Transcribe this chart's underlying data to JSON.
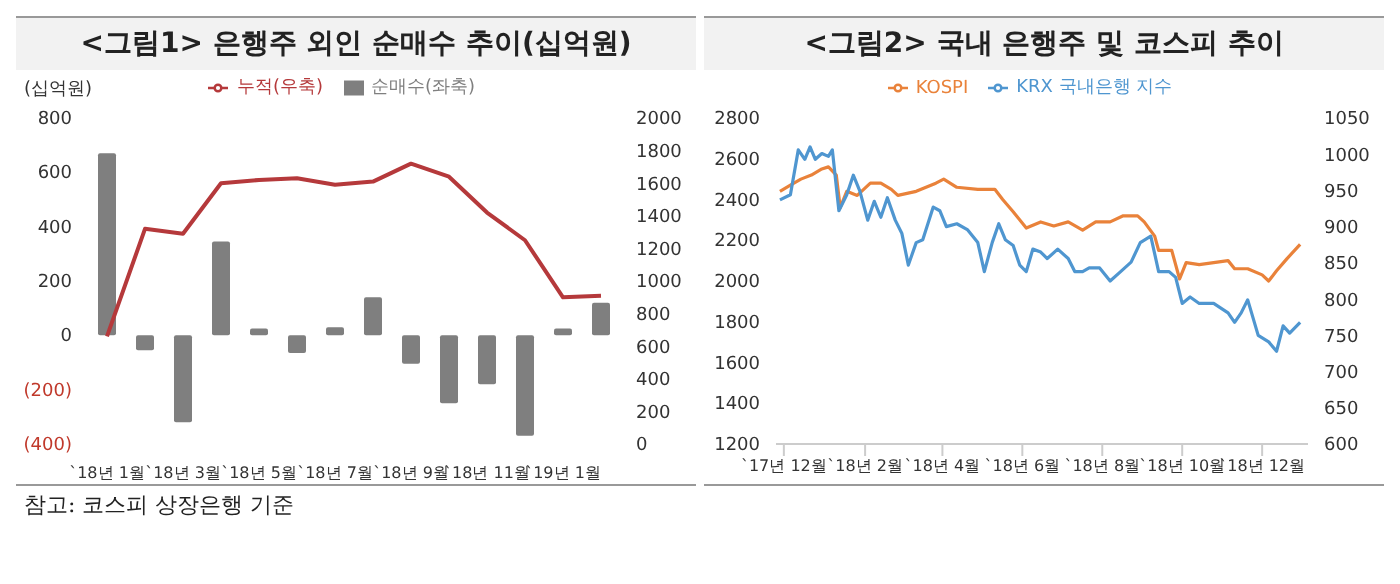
{
  "chart_data": [
    {
      "type": "bar",
      "title": "<그림1> 은행주 외인 순매수 추이(십억원)",
      "ylabel": "(십억원)",
      "annotations": [
        "참고: 코스피 상장은행 기준"
      ],
      "legend": "top",
      "grid": false,
      "categories": [
        "`18년 1월",
        null,
        "`18년 3월",
        null,
        "`18년 5월",
        null,
        "`18년 7월",
        null,
        "`18년 9월",
        null,
        "`18년 11월",
        null,
        "`19년 1월",
        null
      ],
      "series": [
        {
          "name": "순매수(좌축)",
          "color": "#7f7f7f",
          "values": [
            670,
            -55,
            -320,
            345,
            25,
            -65,
            30,
            140,
            -105,
            -250,
            -180,
            -370,
            25,
            120
          ]
        },
        {
          "name": "누적(우축)",
          "type": "line",
          "axis": "y2",
          "color": "#b5393b",
          "values": [
            660,
            1320,
            1290,
            1600,
            1620,
            1630,
            1590,
            1610,
            1720,
            1640,
            1420,
            1250,
            900,
            910
          ]
        }
      ],
      "ylim": [
        -400,
        800
      ],
      "yticks": [
        {
          "value": -400,
          "label": "(400)"
        },
        {
          "value": -200,
          "label": "(200)"
        },
        0,
        200,
        400,
        600,
        800
      ],
      "y2lim": [
        0,
        2000
      ],
      "y2ticks": [
        0,
        200,
        400,
        600,
        800,
        1000,
        1200,
        1400,
        1600,
        1800,
        2000
      ]
    },
    {
      "type": "line",
      "title": "<그림2> 국내 은행주 및 코스피 추이",
      "legend": "top",
      "grid": false,
      "marker": "none",
      "xlim": [
        "2017-11-25",
        "2019-01-05"
      ],
      "xticks": [
        {
          "value": "2017-12-01",
          "label": "`17년 12월"
        },
        {
          "value": "2018-02-01",
          "label": "`18년 2월"
        },
        {
          "value": "2018-04-01",
          "label": "`18년 4월"
        },
        {
          "value": "2018-06-01",
          "label": "`18년 6월"
        },
        {
          "value": "2018-08-01",
          "label": "`18년 8월"
        },
        {
          "value": "2018-10-01",
          "label": "`18년 10월"
        },
        {
          "value": "2018-12-01",
          "label": "`18년 12월"
        }
      ],
      "ylim": [
        1200,
        2800
      ],
      "yticks": [
        1200,
        1400,
        1600,
        1800,
        2000,
        2200,
        2400,
        2600,
        2800
      ],
      "y2lim": [
        600,
        1050
      ],
      "y2ticks": [
        600,
        650,
        700,
        750,
        800,
        850,
        900,
        950,
        1000,
        1050
      ],
      "series": [
        {
          "name": "KOSPI",
          "color": "#e9823a",
          "x": [
            "2017-11-28",
            "2017-12-06",
            "2017-12-14",
            "2017-12-22",
            "2017-12-30",
            "2018-01-04",
            "2018-01-10",
            "2018-01-13",
            "2018-01-18",
            "2018-01-26",
            "2018-02-05",
            "2018-02-13",
            "2018-02-21",
            "2018-02-26",
            "2018-03-12",
            "2018-03-27",
            "2018-04-02",
            "2018-04-12",
            "2018-04-28",
            "2018-05-11",
            "2018-05-17",
            "2018-05-25",
            "2018-06-04",
            "2018-06-15",
            "2018-06-25",
            "2018-07-06",
            "2018-07-17",
            "2018-07-27",
            "2018-08-07",
            "2018-08-17",
            "2018-08-28",
            "2018-09-02",
            "2018-09-10",
            "2018-09-13",
            "2018-09-23",
            "2018-09-29",
            "2018-10-04",
            "2018-10-14",
            "2018-10-25",
            "2018-11-05",
            "2018-11-10",
            "2018-11-20",
            "2018-12-01",
            "2018-12-06",
            "2018-12-12",
            "2018-12-20",
            "2018-12-30"
          ],
          "values": [
            2440,
            2470,
            2500,
            2520,
            2550,
            2560,
            2520,
            2360,
            2440,
            2420,
            2480,
            2480,
            2450,
            2420,
            2440,
            2480,
            2500,
            2460,
            2450,
            2450,
            2400,
            2340,
            2260,
            2290,
            2270,
            2290,
            2250,
            2290,
            2290,
            2320,
            2320,
            2290,
            2220,
            2150,
            2150,
            2010,
            2090,
            2080,
            2090,
            2100,
            2060,
            2060,
            2030,
            2000,
            2050,
            2110,
            2180
          ]
        },
        {
          "name": "KRX 국내은행 지수",
          "color": "#4f96d0",
          "axis": "y2",
          "x": [
            "2017-11-28",
            "2017-12-06",
            "2017-12-12",
            "2017-12-17",
            "2017-12-21",
            "2017-12-25",
            "2017-12-30",
            "2018-01-04",
            "2018-01-07",
            "2018-01-12",
            "2018-01-18",
            "2018-01-23",
            "2018-01-28",
            "2018-02-03",
            "2018-02-08",
            "2018-02-13",
            "2018-02-18",
            "2018-02-24",
            "2018-03-01",
            "2018-03-06",
            "2018-03-12",
            "2018-03-17",
            "2018-03-25",
            "2018-03-30",
            "2018-04-04",
            "2018-04-12",
            "2018-04-20",
            "2018-04-28",
            "2018-05-03",
            "2018-05-09",
            "2018-05-14",
            "2018-05-19",
            "2018-05-25",
            "2018-05-30",
            "2018-06-04",
            "2018-06-09",
            "2018-06-15",
            "2018-06-20",
            "2018-06-28",
            "2018-07-06",
            "2018-07-11",
            "2018-07-17",
            "2018-07-22",
            "2018-07-30",
            "2018-08-07",
            "2018-08-15",
            "2018-08-23",
            "2018-08-30",
            "2018-09-07",
            "2018-09-13",
            "2018-09-21",
            "2018-09-26",
            "2018-10-01",
            "2018-10-07",
            "2018-10-14",
            "2018-10-25",
            "2018-11-05",
            "2018-11-10",
            "2018-11-15",
            "2018-11-20",
            "2018-11-28",
            "2018-12-06",
            "2018-12-12",
            "2018-12-17",
            "2018-12-22",
            "2018-12-30"
          ],
          "values": [
            937,
            944,
            1006,
            993,
            1010,
            993,
            1001,
            997,
            1006,
            922,
            944,
            971,
            949,
            909,
            935,
            913,
            940,
            909,
            891,
            847,
            878,
            882,
            927,
            922,
            900,
            904,
            896,
            878,
            838,
            878,
            904,
            882,
            874,
            847,
            838,
            869,
            865,
            856,
            869,
            856,
            838,
            838,
            843,
            843,
            825,
            838,
            851,
            878,
            887,
            838,
            838,
            830,
            794,
            803,
            794,
            794,
            781,
            768,
            781,
            799,
            750,
            741,
            728,
            763,
            753,
            768
          ]
        }
      ]
    }
  ]
}
